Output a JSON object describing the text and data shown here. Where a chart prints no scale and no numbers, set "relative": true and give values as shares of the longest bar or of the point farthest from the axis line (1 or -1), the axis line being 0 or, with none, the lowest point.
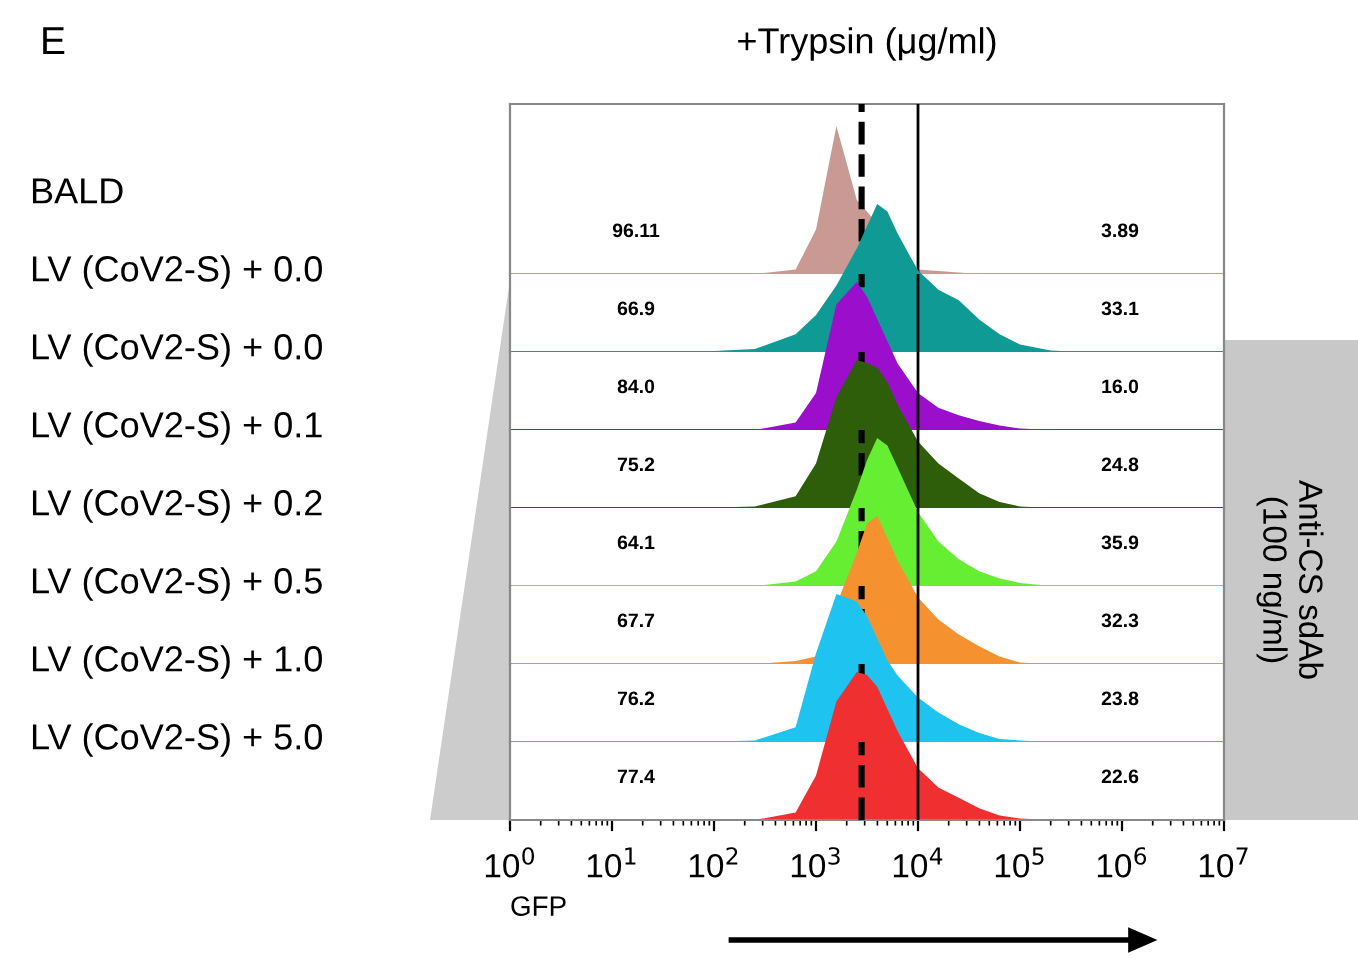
{
  "chart_data": [
    {
      "type": "area",
      "relative": true,
      "log": "x",
      "xlim": [
        1,
        10000000
      ],
      "tick_labels": false,
      "title": "+Trypsin (μg/ml)",
      "ylabel": "BALD",
      "annotations": [
        "96.11",
        "3.89",
        "E"
      ],
      "ref_lines": [
        {
          "axis": "x",
          "value": 2800,
          "line_style": "dashed",
          "color": "#000000"
        },
        {
          "axis": "x",
          "value": 10000,
          "line_style": "solid",
          "color": "#000000"
        }
      ],
      "series": [
        {
          "color": "#c99a94",
          "x": [
            63,
            251,
            631,
            1000,
            1585,
            2512,
            3162,
            3981,
            5012,
            6310,
            10000,
            15849,
            25119,
            39811,
            63096,
            100000,
            199526,
            398107
          ],
          "values": [
            0,
            0,
            0.03,
            0.3,
            1,
            0.5,
            null,
            null,
            null,
            null,
            0.03,
            0.02,
            0.01,
            0,
            0,
            0,
            0,
            0
          ]
        }
      ]
    },
    {
      "type": "area",
      "relative": true,
      "log": "x",
      "xlim": [
        1,
        10000000
      ],
      "tick_labels": false,
      "ylabel": "LV (CoV2-S) + 0.0",
      "annotations": [
        "66.9",
        "33.1"
      ],
      "ref_lines": [
        {
          "axis": "x",
          "value": 2800,
          "line_style": "dashed",
          "color": "#000000"
        },
        {
          "axis": "x",
          "value": 10000,
          "line_style": "solid",
          "color": "#000000"
        }
      ],
      "series": [
        {
          "color": "#0f9a96",
          "x": [
            63,
            251,
            631,
            1000,
            1585,
            2512,
            3162,
            3981,
            5012,
            6310,
            10000,
            15849,
            25119,
            39811,
            63096,
            100000,
            199526,
            398107
          ],
          "values": [
            0,
            0.02,
            0.12,
            0.25,
            0.45,
            0.7,
            0.85,
            1,
            0.95,
            0.8,
            0.55,
            0.42,
            0.35,
            0.22,
            0.12,
            0.05,
            0.01,
            0
          ]
        }
      ]
    },
    {
      "type": "area",
      "relative": true,
      "log": "x",
      "xlim": [
        1,
        10000000
      ],
      "tick_labels": false,
      "ylabel": "LV (CoV2-S) + 0.0",
      "annotations": [
        "84.0",
        "16.0"
      ],
      "ref_lines": [
        {
          "axis": "x",
          "value": 2800,
          "line_style": "dashed",
          "color": "#000000"
        },
        {
          "axis": "x",
          "value": 10000,
          "line_style": "solid",
          "color": "#000000"
        }
      ],
      "series": [
        {
          "color": "#9b0fcc",
          "x": [
            63,
            251,
            631,
            1000,
            1585,
            2512,
            3162,
            3981,
            5012,
            6310,
            10000,
            15849,
            25119,
            39811,
            63096,
            100000,
            199526,
            398107
          ],
          "values": [
            0,
            0,
            0.05,
            0.25,
            0.85,
            1,
            0.9,
            0.75,
            0.6,
            0.45,
            0.25,
            0.15,
            0.1,
            0.06,
            0.03,
            0.01,
            0,
            0
          ]
        }
      ]
    },
    {
      "type": "area",
      "relative": true,
      "log": "x",
      "xlim": [
        1,
        10000000
      ],
      "tick_labels": false,
      "ylabel": "LV (CoV2-S) + 0.1",
      "annotations": [
        "75.2",
        "24.8"
      ],
      "ref_lines": [
        {
          "axis": "x",
          "value": 2800,
          "line_style": "dashed",
          "color": "#000000"
        },
        {
          "axis": "x",
          "value": 10000,
          "line_style": "solid",
          "color": "#000000"
        }
      ],
      "series": [
        {
          "color": "#2e5e0a",
          "x": [
            63,
            251,
            631,
            1000,
            1585,
            2512,
            3162,
            3981,
            5012,
            6310,
            10000,
            15849,
            25119,
            39811,
            63096,
            100000,
            199526,
            398107
          ],
          "values": [
            0,
            0.01,
            0.08,
            0.3,
            0.75,
            1,
            0.98,
            0.95,
            0.85,
            0.7,
            0.45,
            0.3,
            0.2,
            0.1,
            0.04,
            0.01,
            0,
            0
          ]
        }
      ]
    },
    {
      "type": "area",
      "relative": true,
      "log": "x",
      "xlim": [
        1,
        10000000
      ],
      "tick_labels": false,
      "ylabel": "LV (CoV2-S) + 0.2",
      "annotations": [
        "64.1",
        "35.9",
        "Anti-CS sdAb\n(100 ng/ml)"
      ],
      "ref_lines": [
        {
          "axis": "x",
          "value": 2800,
          "line_style": "dashed",
          "color": "#000000"
        },
        {
          "axis": "x",
          "value": 10000,
          "line_style": "solid",
          "color": "#000000"
        }
      ],
      "series": [
        {
          "color": "#66ee33",
          "x": [
            63,
            251,
            631,
            1000,
            1585,
            2512,
            3162,
            3981,
            5012,
            6310,
            10000,
            15849,
            25119,
            39811,
            63096,
            100000,
            199526,
            398107
          ],
          "values": [
            0,
            0,
            0.03,
            0.1,
            0.3,
            0.65,
            0.85,
            1,
            0.95,
            0.8,
            0.5,
            0.3,
            0.18,
            0.1,
            0.05,
            0.02,
            0,
            0
          ]
        }
      ]
    },
    {
      "type": "area",
      "relative": true,
      "log": "x",
      "xlim": [
        1,
        10000000
      ],
      "tick_labels": false,
      "ylabel": "LV (CoV2-S) + 0.5",
      "annotations": [
        "67.7",
        "32.3"
      ],
      "ref_lines": [
        {
          "axis": "x",
          "value": 2800,
          "line_style": "dashed",
          "color": "#000000"
        },
        {
          "axis": "x",
          "value": 10000,
          "line_style": "solid",
          "color": "#000000"
        }
      ],
      "series": [
        {
          "color": "#f5922f",
          "x": [
            63,
            251,
            631,
            1000,
            1585,
            2512,
            3162,
            3981,
            5012,
            6310,
            10000,
            15849,
            25119,
            39811,
            63096,
            100000,
            199526,
            398107
          ],
          "values": [
            0,
            0,
            0.02,
            0.05,
            null,
            0.75,
            0.95,
            1,
            0.85,
            0.7,
            0.45,
            0.3,
            0.2,
            0.12,
            0.05,
            0.01,
            0,
            0
          ]
        }
      ]
    },
    {
      "type": "area",
      "relative": true,
      "log": "x",
      "xlim": [
        1,
        10000000
      ],
      "tick_labels": false,
      "ylabel": "LV (CoV2-S) + 1.0",
      "annotations": [
        "76.2",
        "23.8"
      ],
      "ref_lines": [
        {
          "axis": "x",
          "value": 2800,
          "line_style": "dashed",
          "color": "#000000"
        },
        {
          "axis": "x",
          "value": 10000,
          "line_style": "solid",
          "color": "#000000"
        }
      ],
      "series": [
        {
          "color": "#1ec3f0",
          "x": [
            63,
            251,
            631,
            1000,
            1585,
            2512,
            3162,
            3981,
            5012,
            6310,
            10000,
            15849,
            25119,
            39811,
            63096,
            100000,
            199526,
            398107
          ],
          "values": [
            0,
            0.01,
            0.1,
            0.6,
            1,
            0.95,
            0.85,
            0.7,
            0.55,
            0.45,
            0.3,
            0.2,
            0.12,
            0.06,
            0.02,
            0.01,
            0,
            0
          ]
        }
      ]
    },
    {
      "type": "area",
      "relative": true,
      "log": "x",
      "xlim": [
        1,
        10000000
      ],
      "tick_labels": "x",
      "xlabel": "GFP",
      "ylabel": "LV (CoV2-S) + 5.0",
      "annotations": [
        "77.4",
        "22.6"
      ],
      "xticks": [
        {
          "value": 1,
          "label": "10$^{0}$"
        },
        {
          "value": 10,
          "label": "10$^{1}$"
        },
        {
          "value": 100,
          "label": "10$^{2}$"
        },
        {
          "value": 1000,
          "label": "10$^{3}$"
        },
        {
          "value": 10000,
          "label": "10$^{4}$"
        },
        {
          "value": 100000,
          "label": "10$^{5}$"
        },
        {
          "value": 1000000,
          "label": "10$^{6}$"
        },
        {
          "value": 10000000,
          "label": "10$^{7}$"
        }
      ],
      "ref_lines": [
        {
          "axis": "x",
          "value": 2800,
          "line_style": "dashed",
          "color": "#000000"
        },
        {
          "axis": "x",
          "value": 10000,
          "line_style": "solid",
          "color": "#000000"
        }
      ],
      "series": [
        {
          "color": "#f03030",
          "x": [
            63,
            251,
            631,
            1000,
            1585,
            2512,
            3162,
            3981,
            5012,
            6310,
            10000,
            15849,
            25119,
            39811,
            63096,
            100000,
            199526,
            398107
          ],
          "values": [
            0,
            0,
            0.05,
            0.3,
            0.8,
            1,
            0.98,
            0.9,
            0.75,
            0.6,
            0.35,
            0.22,
            0.15,
            0.08,
            0.03,
            0.01,
            0,
            0
          ]
        }
      ]
    }
  ]
}
